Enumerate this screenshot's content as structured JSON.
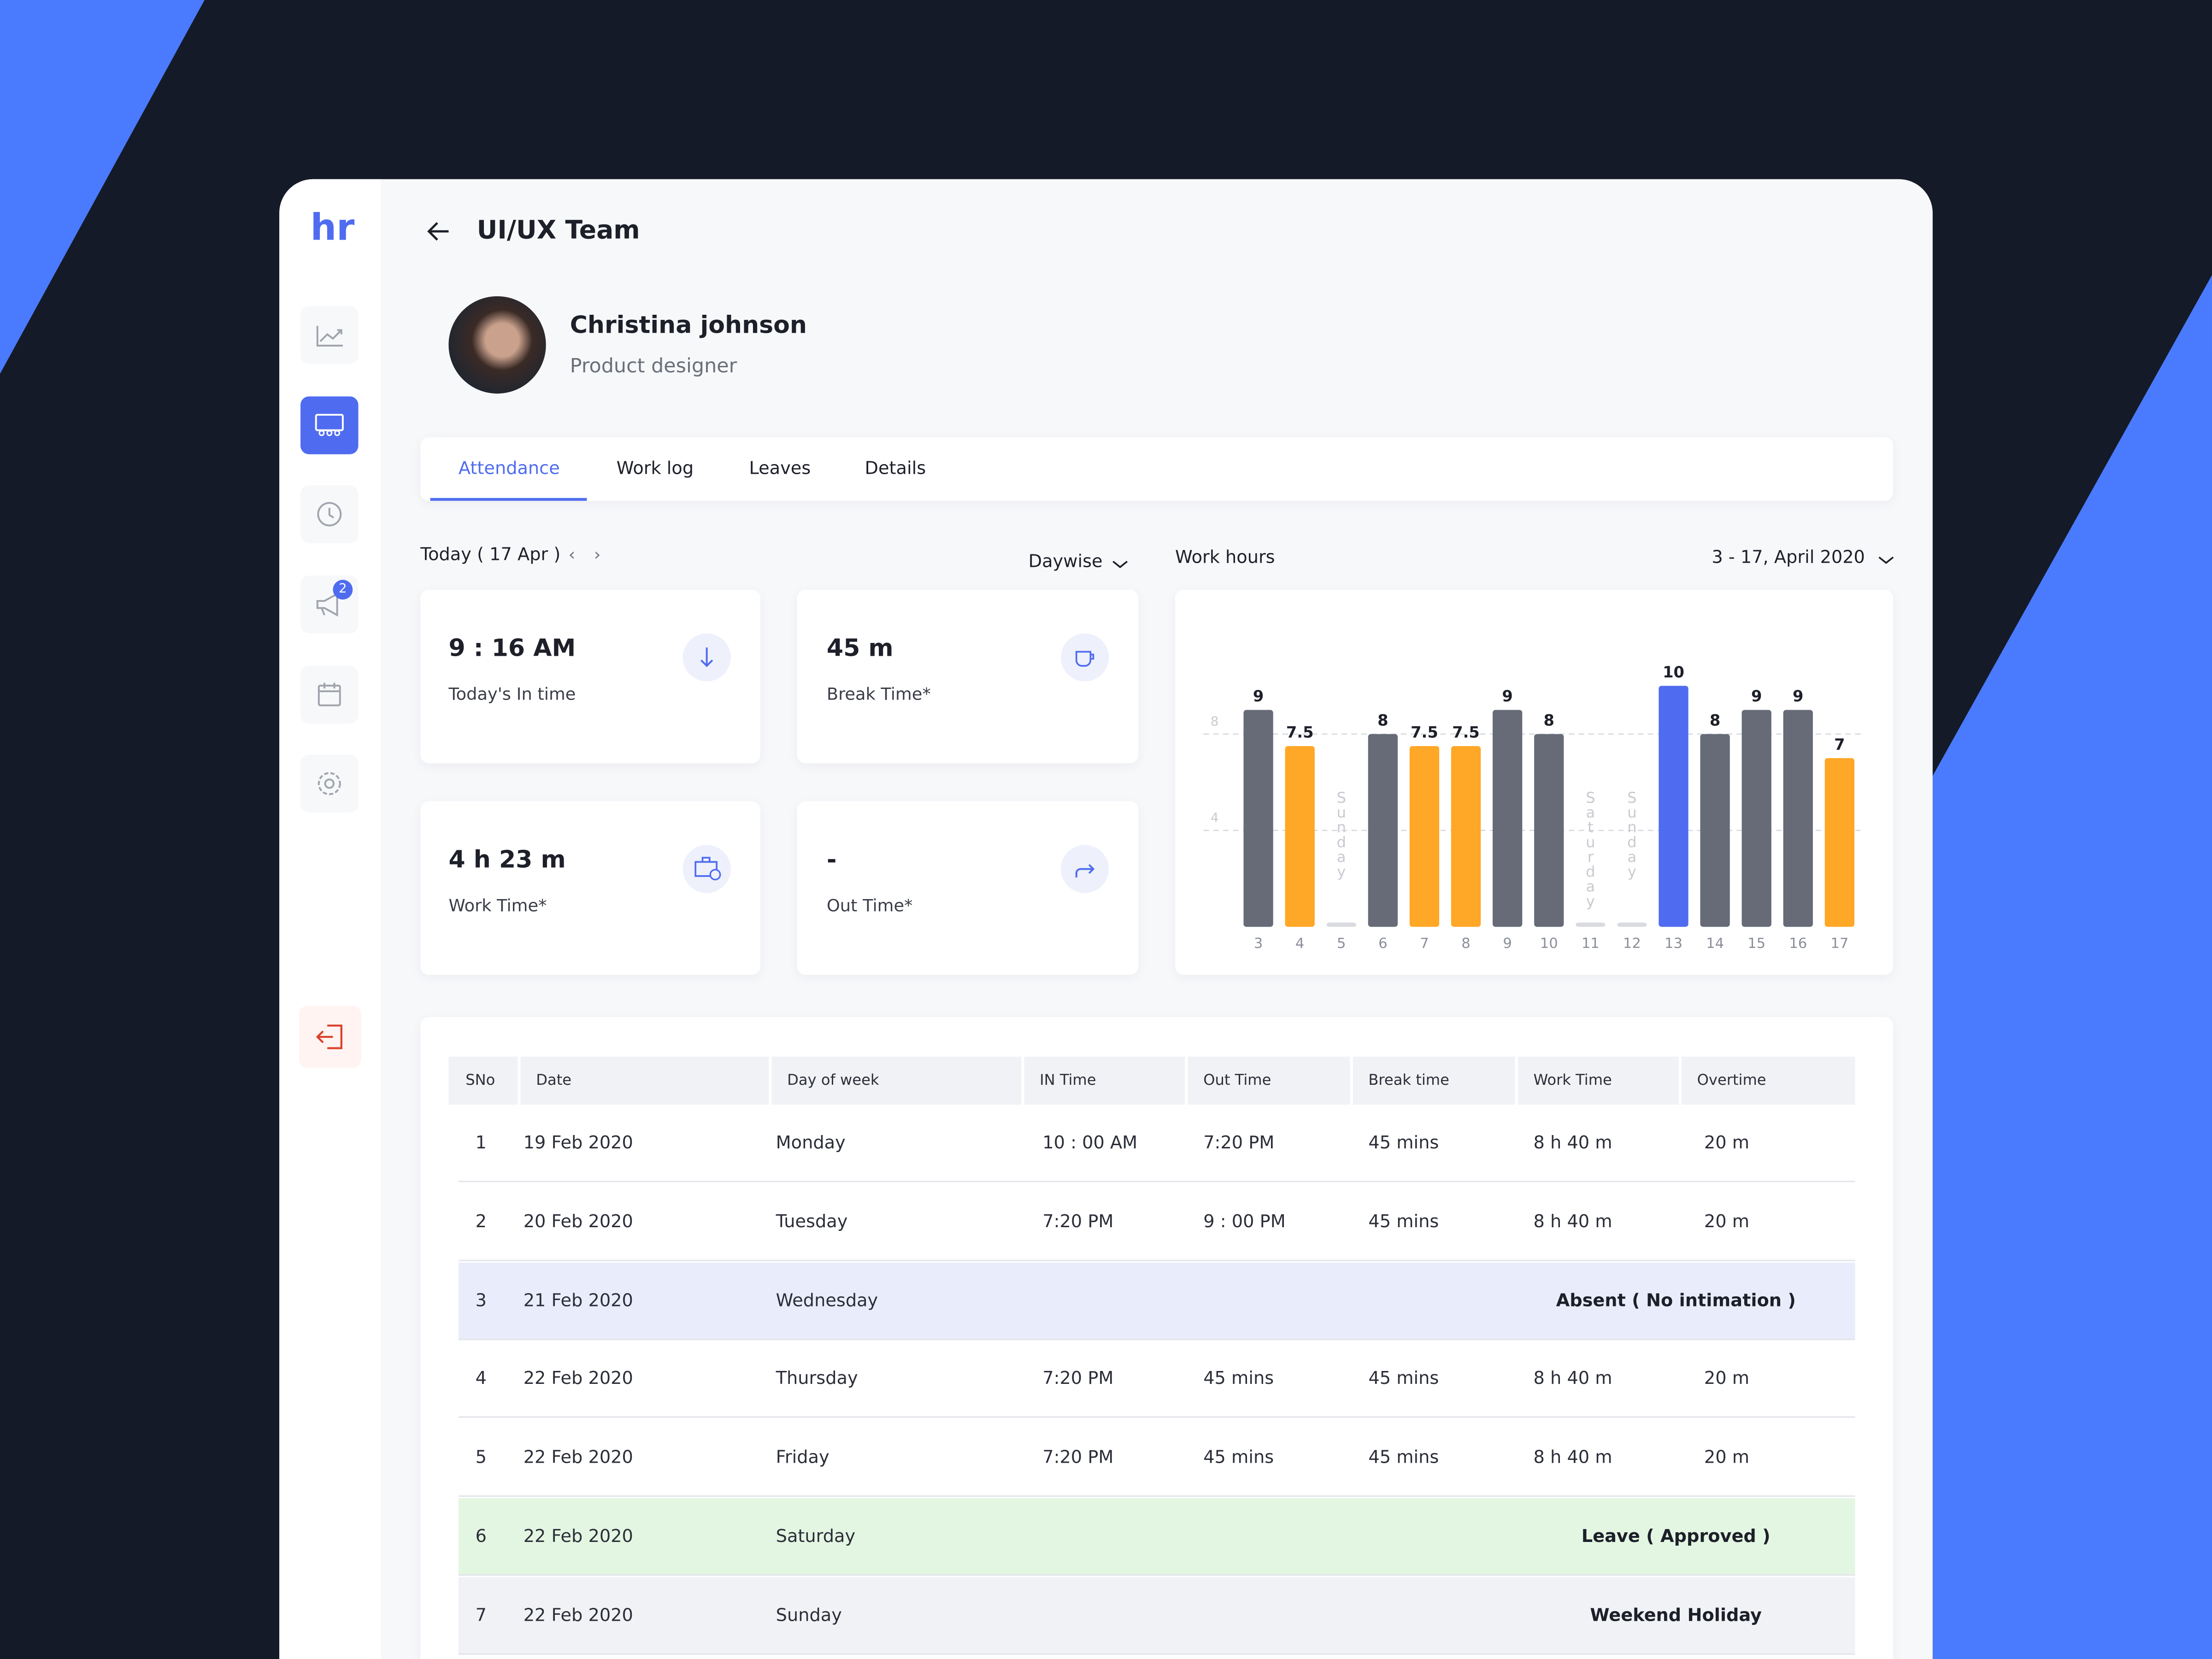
{
  "header": {
    "logo": "hr",
    "title": "UI/UX Team"
  },
  "nav": {
    "badge": "2"
  },
  "profile": {
    "name": "Christina johnson",
    "role": "Product designer"
  },
  "tabs": [
    "Attendance",
    "Work log",
    "Leaves",
    "Details"
  ],
  "controls": {
    "today": "Today ( 17 Apr )",
    "mode": "Daywise",
    "chart_title": "Work hours",
    "range": "3 - 17, April 2020"
  },
  "stats": [
    {
      "value": "9 : 16 AM",
      "label": "Today's In time"
    },
    {
      "value": "45 m",
      "label": "Break Time*"
    },
    {
      "value": "4 h 23 m",
      "label": "Work Time*"
    },
    {
      "value": "-",
      "label": "Out Time*"
    }
  ],
  "chart_data": {
    "type": "bar",
    "categories": [
      "3",
      "4",
      "5",
      "6",
      "7",
      "8",
      "9",
      "10",
      "11",
      "12",
      "13",
      "14",
      "15",
      "16",
      "17"
    ],
    "values": [
      9,
      7.5,
      0,
      8,
      7.5,
      7.5,
      9,
      8,
      0,
      0,
      10,
      8,
      9,
      9,
      7
    ],
    "day_labels": [
      null,
      null,
      "Sunday",
      null,
      null,
      null,
      null,
      null,
      "Saturday",
      "Sunday",
      null,
      null,
      null,
      null,
      null
    ],
    "colors": [
      "#676b78",
      "#ffa726",
      "#d9dbe0",
      "#676b78",
      "#ffa726",
      "#ffa726",
      "#676b78",
      "#676b78",
      "#d9dbe0",
      "#d9dbe0",
      "#4f6cf0",
      "#676b78",
      "#676b78",
      "#676b78",
      "#ffa726"
    ],
    "ylim": [
      0,
      12
    ],
    "yticks": [
      4,
      8
    ],
    "grid": true
  },
  "table": {
    "headers": [
      "SNo",
      "Date",
      "Day of week",
      "IN Time",
      "Out Time",
      "Break time",
      "Work Time",
      "Overtime"
    ],
    "rows": [
      {
        "cells": [
          "1",
          "19 Feb 2020",
          "Monday",
          "10 : 00 AM",
          "7:20 PM",
          "45 mins",
          "8 h 40 m",
          "20 m"
        ]
      },
      {
        "cells": [
          "2",
          "20 Feb 2020",
          "Tuesday",
          "7:20 PM",
          "9 : 00 PM",
          "45 mins",
          "8 h 40 m",
          "20 m"
        ]
      },
      {
        "cells": [
          "3",
          "21 Feb 2020",
          "Wednesday"
        ],
        "status": "Absent ( No intimation )",
        "color": "#e9edfb"
      },
      {
        "cells": [
          "4",
          "22 Feb 2020",
          "Thursday",
          "7:20 PM",
          "45 mins",
          "45 mins",
          "8 h 40 m",
          "20 m"
        ]
      },
      {
        "cells": [
          "5",
          "22 Feb 2020",
          "Friday",
          "7:20 PM",
          "45 mins",
          "45 mins",
          "8 h 40 m",
          "20 m"
        ]
      },
      {
        "cells": [
          "6",
          "22 Feb 2020",
          "Saturday"
        ],
        "status": "Leave ( Approved )",
        "color": "#e3f6e2"
      },
      {
        "cells": [
          "7",
          "22 Feb 2020",
          "Sunday"
        ],
        "status": "Weekend Holiday",
        "color": "#f1f2f5"
      }
    ]
  }
}
